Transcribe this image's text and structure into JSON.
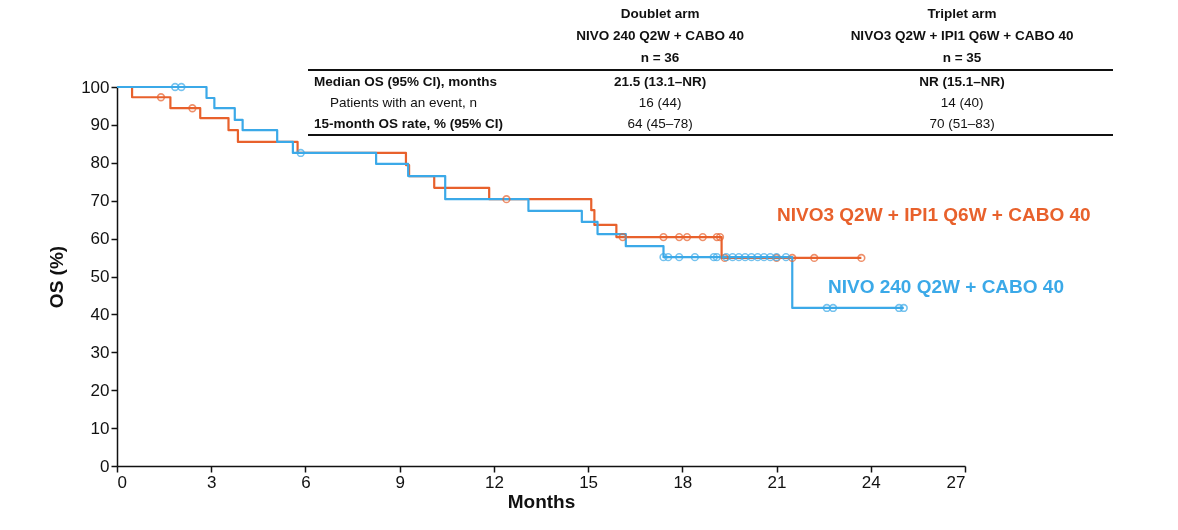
{
  "chart_data": {
    "type": "step",
    "xlabel": "Months",
    "ylabel": "OS (%)",
    "xlim": [
      0,
      27
    ],
    "xticks": [
      0,
      3,
      6,
      9,
      12,
      15,
      18,
      21,
      24,
      27
    ],
    "ylim": [
      0,
      100
    ],
    "yticks": [
      0,
      10,
      20,
      30,
      40,
      50,
      60,
      70,
      80,
      90,
      100
    ],
    "grid": false,
    "legend": false,
    "marker": "none",
    "series": [
      {
        "name": "NIVO3 Q2W + IPI1 Q6W + CABO 40",
        "color": "#e8612c",
        "x": [
          0,
          0.48,
          1.7,
          2.65,
          3.55,
          3.85,
          5.75,
          9.2,
          9.3,
          10.1,
          11.85,
          15.1,
          15.2,
          15.9,
          19.25,
          23.7
        ],
        "values": [
          100,
          97.3,
          94.4,
          91.8,
          88.6,
          85.5,
          82.6,
          79.4,
          76.5,
          73.4,
          70.4,
          67.5,
          63.6,
          60.4,
          54.9,
          54.9
        ]
      },
      {
        "name": "NIVO 240 Q2W + CABO 40",
        "color": "#3ba9e8",
        "x": [
          0,
          2.85,
          3.1,
          3.75,
          4.0,
          5.1,
          5.6,
          8.25,
          9.27,
          10.45,
          13.1,
          14.8,
          15.3,
          16.2,
          17.4,
          21.5,
          25.05
        ],
        "values": [
          100,
          97.1,
          94.4,
          91.3,
          88.6,
          85.5,
          82.6,
          79.7,
          76.5,
          70.4,
          67.3,
          64.4,
          61.2,
          58.0,
          55.1,
          41.7,
          41.7
        ]
      },
      {
        "type": "scatter",
        "marker": "circle",
        "color": "#e8612c",
        "x": [
          1.4,
          2.4,
          12.4,
          16.1,
          17.4,
          17.9,
          18.15,
          18.65,
          19.1,
          19.2,
          19.35,
          21.0,
          21.5,
          22.2,
          23.7
        ],
        "values": [
          97.3,
          94.4,
          70.4,
          60.4,
          60.4,
          60.4,
          60.4,
          60.4,
          60.4,
          60.4,
          54.9,
          54.9,
          54.9,
          54.9,
          54.9
        ]
      },
      {
        "type": "scatter",
        "marker": "circle",
        "color": "#3ba9e8",
        "x": [
          1.85,
          2.05,
          5.85,
          17.4,
          17.55,
          17.9,
          18.4,
          19.0,
          19.1,
          19.4,
          19.6,
          19.8,
          20.0,
          20.2,
          20.4,
          20.6,
          20.8,
          21.0,
          21.3,
          22.6,
          22.8,
          24.9,
          25.05
        ],
        "values": [
          100,
          100,
          82.6,
          55.1,
          55.1,
          55.1,
          55.1,
          55.1,
          55.1,
          55.1,
          55.1,
          55.1,
          55.1,
          55.1,
          55.1,
          55.1,
          55.1,
          55.1,
          55.1,
          41.7,
          41.7,
          41.7,
          41.7
        ]
      }
    ],
    "annotations": [
      "Doublet arm",
      "Triplet arm",
      "NIVO 240 Q2W + CABO 40",
      "NIVO3 Q2W + IPI1 Q6W + CABO 40",
      "n = 36",
      "n = 35",
      "Median OS (95% CI), months",
      "21.5 (13.1–NR)",
      "NR (15.1–NR)",
      "Patients with an event, n",
      "16 (44)",
      "14 (40)",
      "15-month OS rate, % (95% CI)",
      "64 (45–78)",
      "70 (51–83)"
    ]
  }
}
